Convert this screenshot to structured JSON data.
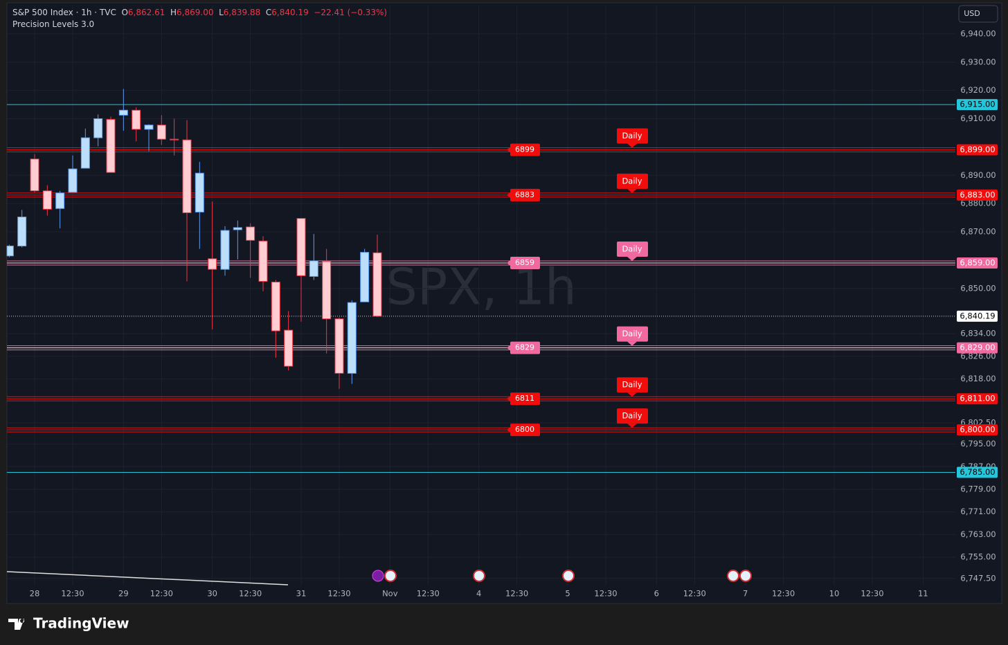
{
  "chart_data": {
    "type": "candlestick",
    "legend": {
      "symbol": "S&P 500 Index · 1h · TVC",
      "open_label": "O",
      "open": "6,862.61",
      "high_label": "H",
      "high": "6,869.00",
      "low_label": "L",
      "low": "6,839.88",
      "close_label": "C",
      "close": "6,840.19",
      "change": "−22.41 (−0.33%)"
    },
    "indicator": "Precision Levels 3.0",
    "watermark": "SPX, 1h",
    "currency": "USD",
    "brand": "TradingView",
    "up_color": "#bbdefb",
    "down_color": "#ffcdd2",
    "open": [
      6861.5,
      6865,
      6895.75,
      6884.5,
      6878.25,
      6884,
      6892.5,
      6903.25,
      6909.75,
      6911.25,
      6913,
      6906.25,
      6907.75,
      6902.75,
      6902.5,
      6877,
      6860.5,
      6856.75,
      6870.75,
      6871.75,
      6866.75,
      6852.25,
      6835.25,
      6874.75,
      6854.25,
      6859.5,
      6839.25,
      6820,
      6845.25,
      6862.61
    ],
    "high": [
      6865.5,
      6877.75,
      6897.5,
      6886.5,
      6884.5,
      6897,
      6906.5,
      6911.5,
      6910.75,
      6920.5,
      6914,
      6908,
      6911.25,
      6910,
      6909.5,
      6894.75,
      6880.75,
      6872,
      6874,
      6873,
      6868.5,
      6853,
      6842,
      6874.75,
      6869.25,
      6864,
      6839.75,
      6845.75,
      6864,
      6869
    ],
    "low": [
      6861,
      6864.5,
      6884,
      6875.75,
      6871.25,
      6884,
      6892.5,
      6900.25,
      6891,
      6905.75,
      6902,
      6898.5,
      6900.75,
      6897,
      6852.5,
      6864,
      6835.5,
      6854.5,
      6860.25,
      6853.75,
      6849,
      6825.5,
      6821,
      6838.25,
      6853,
      6827,
      6814.5,
      6816.25,
      6845.25,
      6839.88
    ],
    "close": [
      6865,
      6875.25,
      6884.5,
      6878,
      6883.75,
      6892.25,
      6903.25,
      6910,
      6891,
      6913,
      6906.25,
      6907.75,
      6902.75,
      6902.5,
      6876.75,
      6890.75,
      6856.75,
      6870.5,
      6871.5,
      6867,
      6852.5,
      6835,
      6822.5,
      6854.5,
      6859.75,
      6839.25,
      6820,
      6845,
      6862.75,
      6840.19
    ],
    "xtick_labels": [
      "28",
      "12:30",
      "29",
      "12:30",
      "30",
      "12:30",
      "31",
      "12:30",
      "Nov",
      "12:30",
      "4",
      "12:30",
      "5",
      "12:30",
      "6",
      "12:30",
      "7",
      "12:30",
      "10",
      "12:30",
      "11"
    ],
    "ylim": [
      6745,
      6950
    ],
    "yticks": [
      {
        "value": 6940,
        "label": "6,940.00"
      },
      {
        "value": 6930,
        "label": "6,930.00"
      },
      {
        "value": 6920,
        "label": "6,920.00"
      },
      {
        "value": 6910,
        "label": "6,910.00"
      },
      {
        "value": 6890,
        "label": "6,890.00"
      },
      {
        "value": 6880,
        "label": "6,880.00"
      },
      {
        "value": 6870,
        "label": "6,870.00"
      },
      {
        "value": 6850,
        "label": "6,850.00"
      },
      {
        "value": 6834,
        "label": "6,834.00"
      },
      {
        "value": 6826,
        "label": "6,826.00"
      },
      {
        "value": 6818,
        "label": "6,818.00"
      },
      {
        "value": 6802.5,
        "label": "6,802.50"
      },
      {
        "value": 6795,
        "label": "6,795.00"
      },
      {
        "value": 6787,
        "label": "6,787.00"
      },
      {
        "value": 6779,
        "label": "6,779.00"
      },
      {
        "value": 6771,
        "label": "6,771.00"
      },
      {
        "value": 6763,
        "label": "6,763.00"
      },
      {
        "value": 6755,
        "label": "6,755.00"
      },
      {
        "value": 6747.5,
        "label": "6,747.50"
      }
    ],
    "grid": true,
    "levels": [
      {
        "price": {
          "value": 6899,
          "label": "6,899.00"
        },
        "timeframe": "Daily",
        "color": "#f20d0d"
      },
      {
        "price": {
          "value": 6883,
          "label": "6,883.00"
        },
        "timeframe": "Daily",
        "color": "#f20d0d"
      },
      {
        "price": {
          "value": 6859,
          "label": "6,859.00"
        },
        "timeframe": "Daily",
        "color": "#f06aa0"
      },
      {
        "price": {
          "value": 6829,
          "label": "6,829.00"
        },
        "timeframe": "Daily",
        "color": "#f06aa0"
      },
      {
        "price": {
          "value": 6811,
          "label": "6,811.00"
        },
        "timeframe": "Daily",
        "color": "#f20d0d"
      },
      {
        "price": {
          "value": 6800,
          "label": "6,800.00"
        },
        "timeframe": "Daily",
        "color": "#f20d0d"
      }
    ],
    "bounds": [
      {
        "value": 6915,
        "label": "6,915.00"
      },
      {
        "value": 6785,
        "label": "6,785.00"
      }
    ],
    "bounds_color": "#26c6da",
    "last_price": {
      "value": 6840.19,
      "label": "6,840.19"
    }
  }
}
